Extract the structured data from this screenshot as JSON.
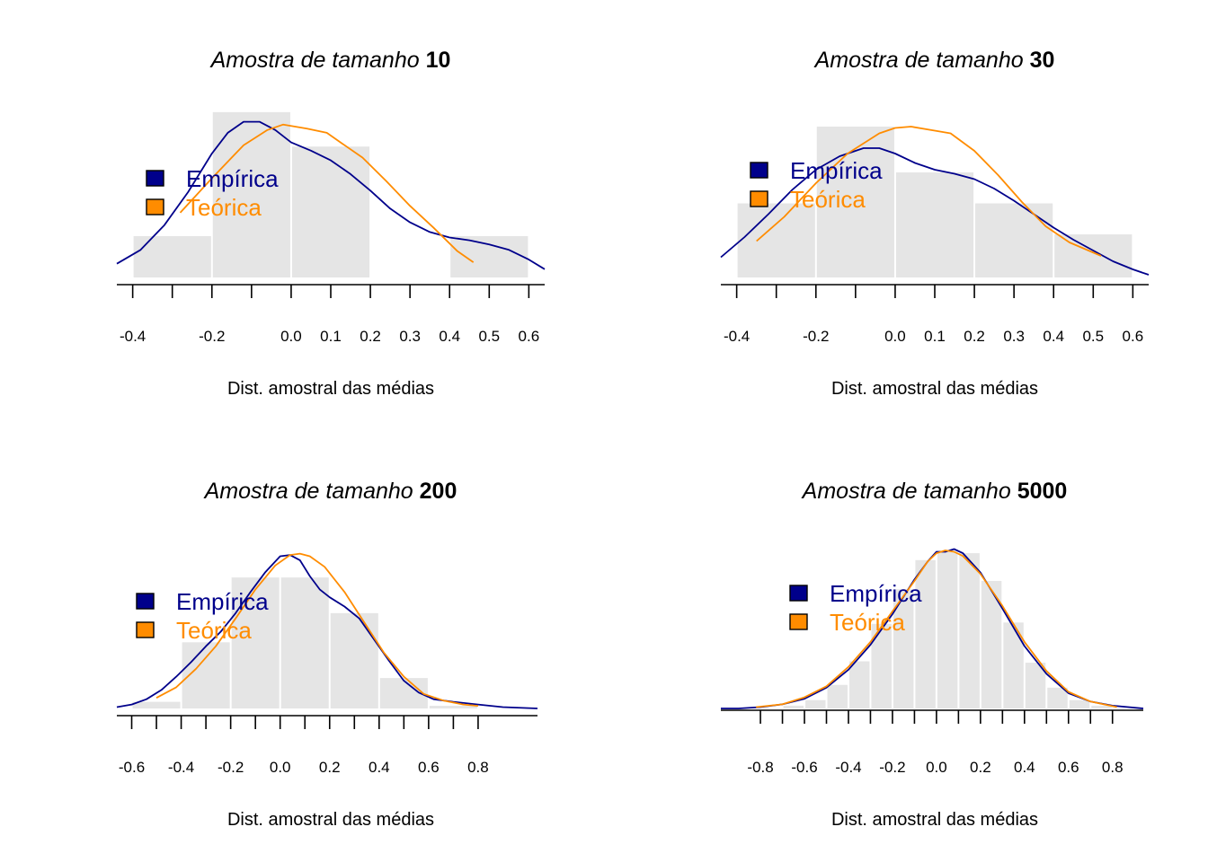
{
  "labels": {
    "title_prefix": "Amostra de tamanho",
    "xlabel": "Dist. amostral das médias"
  },
  "colors": {
    "empirica": "#00008B",
    "teorica": "#FF8C00",
    "bars": "#E5E5E5",
    "axis": "#000000"
  },
  "chart_data": [
    {
      "type": "bar",
      "title_n": "10",
      "xlabel": "Dist. amostral das médias",
      "xlim": [
        -0.44,
        0.64
      ],
      "ymax": 1.16,
      "ticks": [
        -0.4,
        -0.3,
        -0.2,
        -0.1,
        0.0,
        0.1,
        0.2,
        0.3,
        0.4,
        0.5,
        0.6
      ],
      "tick_labels": [
        "-0.4",
        "",
        "-0.2",
        "",
        "0.0",
        "0.1",
        "0.2",
        "0.3",
        "0.4",
        "0.5",
        "0.6"
      ],
      "bins": [
        [
          -0.4,
          -0.2
        ],
        [
          -0.2,
          0.0
        ],
        [
          0.0,
          0.2
        ],
        [
          0.2,
          0.4
        ],
        [
          0.4,
          0.6
        ]
      ],
      "counts": [
        0.3,
        1.2,
        0.95,
        0.0,
        0.3
      ],
      "legend": {
        "position": "left",
        "items": [
          "Empírica",
          "Teórica"
        ]
      },
      "series": [
        {
          "name": "Empírica",
          "x": [
            -0.44,
            -0.38,
            -0.32,
            -0.26,
            -0.2,
            -0.16,
            -0.12,
            -0.08,
            -0.04,
            0.0,
            0.05,
            0.1,
            0.15,
            0.2,
            0.25,
            0.3,
            0.35,
            0.4,
            0.45,
            0.5,
            0.55,
            0.6,
            0.64
          ],
          "y": [
            0.1,
            0.2,
            0.38,
            0.62,
            0.9,
            1.05,
            1.13,
            1.13,
            1.07,
            0.98,
            0.92,
            0.85,
            0.75,
            0.63,
            0.5,
            0.4,
            0.33,
            0.29,
            0.27,
            0.24,
            0.2,
            0.13,
            0.06
          ]
        },
        {
          "name": "Teórica",
          "x": [
            -0.28,
            -0.2,
            -0.12,
            -0.06,
            -0.02,
            0.0,
            0.04,
            0.09,
            0.13,
            0.18,
            0.24,
            0.3,
            0.36,
            0.42,
            0.46
          ],
          "y": [
            0.47,
            0.72,
            0.96,
            1.07,
            1.11,
            1.1,
            1.08,
            1.05,
            0.97,
            0.87,
            0.7,
            0.52,
            0.36,
            0.19,
            0.11
          ]
        }
      ]
    },
    {
      "type": "bar",
      "title_n": "30",
      "xlabel": "Dist. amostral das médias",
      "xlim": [
        -0.44,
        0.64
      ],
      "ymax": 1.12,
      "ticks": [
        -0.4,
        -0.3,
        -0.2,
        -0.1,
        0.0,
        0.1,
        0.2,
        0.3,
        0.4,
        0.5,
        0.6
      ],
      "tick_labels": [
        "-0.4",
        "",
        "-0.2",
        "",
        "0.0",
        "0.1",
        "0.2",
        "0.3",
        "0.4",
        "0.5",
        "0.6"
      ],
      "bins": [
        [
          -0.4,
          -0.2
        ],
        [
          -0.2,
          0.0
        ],
        [
          0.0,
          0.2
        ],
        [
          0.2,
          0.4
        ],
        [
          0.4,
          0.6
        ]
      ],
      "counts": [
        0.55,
        1.12,
        0.78,
        0.55,
        0.32
      ],
      "legend": {
        "position": "left",
        "items": [
          "Empírica",
          "Teórica"
        ]
      },
      "series": [
        {
          "name": "Empírica",
          "x": [
            -0.44,
            -0.38,
            -0.32,
            -0.26,
            -0.2,
            -0.14,
            -0.08,
            -0.04,
            0.0,
            0.05,
            0.1,
            0.15,
            0.2,
            0.25,
            0.3,
            0.35,
            0.4,
            0.45,
            0.5,
            0.55,
            0.6,
            0.64
          ],
          "y": [
            0.15,
            0.3,
            0.47,
            0.65,
            0.8,
            0.9,
            0.96,
            0.96,
            0.92,
            0.85,
            0.8,
            0.77,
            0.73,
            0.66,
            0.57,
            0.47,
            0.37,
            0.28,
            0.2,
            0.12,
            0.06,
            0.02
          ]
        },
        {
          "name": "Teórica",
          "x": [
            -0.35,
            -0.28,
            -0.2,
            -0.12,
            -0.04,
            0.0,
            0.04,
            0.1,
            0.14,
            0.2,
            0.26,
            0.32,
            0.38,
            0.44,
            0.52
          ],
          "y": [
            0.27,
            0.45,
            0.7,
            0.92,
            1.07,
            1.11,
            1.12,
            1.09,
            1.07,
            0.94,
            0.76,
            0.56,
            0.38,
            0.26,
            0.16
          ]
        }
      ]
    },
    {
      "type": "bar",
      "title_n": "200",
      "xlabel": "Dist. amostral das médias",
      "xlim": [
        -0.66,
        1.04
      ],
      "ymax": 1.14,
      "ticks": [
        -0.6,
        -0.5,
        -0.4,
        -0.3,
        -0.2,
        -0.1,
        0.0,
        0.1,
        0.2,
        0.3,
        0.4,
        0.5,
        0.6,
        0.7,
        0.8
      ],
      "tick_labels": [
        "-0.6",
        "",
        "-0.4",
        "",
        "-0.2",
        "",
        "0.0",
        "",
        "0.2",
        "",
        "0.4",
        "",
        "0.6",
        "",
        "0.8"
      ],
      "bins": [
        [
          -0.6,
          -0.4
        ],
        [
          -0.4,
          -0.2
        ],
        [
          -0.2,
          0.0
        ],
        [
          0.0,
          0.2
        ],
        [
          0.2,
          0.4
        ],
        [
          0.4,
          0.6
        ],
        [
          0.6,
          0.8
        ]
      ],
      "counts": [
        0.05,
        0.5,
        0.99,
        0.99,
        0.72,
        0.23,
        0.02
      ],
      "legend": {
        "position": "left",
        "items": [
          "Empírica",
          "Teórica"
        ]
      },
      "series": [
        {
          "name": "Empírica",
          "x": [
            -0.66,
            -0.6,
            -0.54,
            -0.48,
            -0.42,
            -0.36,
            -0.3,
            -0.24,
            -0.18,
            -0.12,
            -0.06,
            0.0,
            0.04,
            0.08,
            0.12,
            0.16,
            0.2,
            0.26,
            0.32,
            0.38,
            0.44,
            0.5,
            0.56,
            0.62,
            0.7,
            0.8,
            0.9,
            1.04
          ],
          "y": [
            0.01,
            0.03,
            0.07,
            0.14,
            0.24,
            0.35,
            0.47,
            0.58,
            0.72,
            0.88,
            1.03,
            1.15,
            1.16,
            1.12,
            1.0,
            0.9,
            0.84,
            0.77,
            0.68,
            0.52,
            0.36,
            0.21,
            0.12,
            0.07,
            0.05,
            0.03,
            0.01,
            0.0
          ]
        },
        {
          "name": "Teórica",
          "x": [
            -0.5,
            -0.42,
            -0.34,
            -0.26,
            -0.18,
            -0.1,
            -0.02,
            0.04,
            0.08,
            0.12,
            0.18,
            0.26,
            0.34,
            0.42,
            0.5,
            0.58,
            0.66,
            0.74,
            0.8
          ],
          "y": [
            0.08,
            0.16,
            0.3,
            0.47,
            0.68,
            0.9,
            1.08,
            1.16,
            1.17,
            1.15,
            1.07,
            0.88,
            0.65,
            0.42,
            0.24,
            0.11,
            0.06,
            0.03,
            0.02
          ]
        }
      ]
    },
    {
      "type": "bar",
      "title_n": "5000",
      "xlabel": "Dist. amostral das médias",
      "xlim": [
        -0.98,
        0.94
      ],
      "ymax": 1.14,
      "ticks": [
        -0.8,
        -0.7,
        -0.6,
        -0.5,
        -0.4,
        -0.3,
        -0.2,
        -0.1,
        0.0,
        0.1,
        0.2,
        0.3,
        0.4,
        0.5,
        0.6,
        0.7,
        0.8
      ],
      "tick_labels": [
        "-0.8",
        "",
        "-0.6",
        "",
        "-0.4",
        "",
        "-0.2",
        "",
        "0.0",
        "",
        "0.2",
        "",
        "0.4",
        "",
        "0.6",
        "",
        "0.8"
      ],
      "bins": [
        [
          -0.9,
          -0.8
        ],
        [
          -0.8,
          -0.7
        ],
        [
          -0.7,
          -0.6
        ],
        [
          -0.6,
          -0.5
        ],
        [
          -0.5,
          -0.4
        ],
        [
          -0.4,
          -0.3
        ],
        [
          -0.3,
          -0.2
        ],
        [
          -0.2,
          -0.1
        ],
        [
          -0.1,
          0.0
        ],
        [
          0.0,
          0.1
        ],
        [
          0.1,
          0.2
        ],
        [
          0.2,
          0.3
        ],
        [
          0.3,
          0.4
        ],
        [
          0.4,
          0.5
        ],
        [
          0.5,
          0.6
        ],
        [
          0.6,
          0.7
        ],
        [
          0.7,
          0.8
        ],
        [
          0.8,
          0.9
        ]
      ],
      "counts": [
        0.0,
        0.0,
        0.02,
        0.06,
        0.17,
        0.34,
        0.61,
        0.86,
        1.07,
        1.13,
        1.12,
        0.92,
        0.62,
        0.33,
        0.15,
        0.06,
        0.02,
        0.0
      ],
      "legend": {
        "position": "left",
        "items": [
          "Empírica",
          "Teórica"
        ]
      },
      "series": [
        {
          "name": "Empírica",
          "x": [
            -0.98,
            -0.9,
            -0.8,
            -0.7,
            -0.6,
            -0.5,
            -0.4,
            -0.3,
            -0.2,
            -0.1,
            -0.04,
            0.0,
            0.04,
            0.08,
            0.12,
            0.2,
            0.3,
            0.4,
            0.5,
            0.6,
            0.7,
            0.8,
            0.94
          ],
          "y": [
            0.0,
            0.0,
            0.01,
            0.03,
            0.07,
            0.15,
            0.28,
            0.46,
            0.68,
            0.93,
            1.06,
            1.13,
            1.13,
            1.15,
            1.12,
            0.98,
            0.72,
            0.45,
            0.25,
            0.11,
            0.05,
            0.02,
            0.0
          ]
        },
        {
          "name": "Teórica",
          "x": [
            -0.82,
            -0.7,
            -0.6,
            -0.5,
            -0.4,
            -0.3,
            -0.2,
            -0.1,
            -0.04,
            0.0,
            0.04,
            0.08,
            0.12,
            0.2,
            0.3,
            0.4,
            0.5,
            0.6,
            0.7,
            0.82
          ],
          "y": [
            0.01,
            0.03,
            0.08,
            0.16,
            0.3,
            0.48,
            0.7,
            0.92,
            1.06,
            1.12,
            1.14,
            1.13,
            1.1,
            0.97,
            0.74,
            0.48,
            0.27,
            0.12,
            0.05,
            0.01
          ]
        }
      ]
    }
  ]
}
